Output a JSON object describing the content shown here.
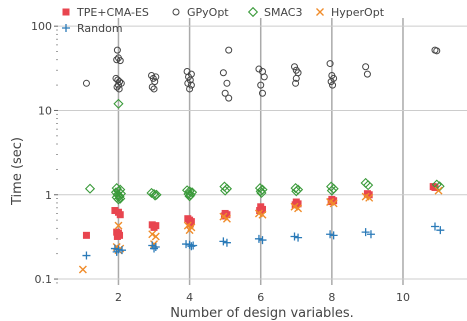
{
  "chart_data": {
    "type": "scatter",
    "xlabel": "Number of design variables.",
    "ylabel": "Time (sec)",
    "xlim": [
      0.3,
      11.8
    ],
    "ylim": [
      0.085,
      125
    ],
    "yscale": "log",
    "xticks": [
      2,
      4,
      6,
      8,
      10
    ],
    "xtick_labels": [
      "2",
      "4",
      "6",
      "8",
      "10"
    ],
    "yticks": [
      0.1,
      1,
      10,
      100
    ],
    "ytick_labels": [
      "0.1",
      "1",
      "10",
      "100"
    ],
    "grid": true,
    "legend_position": "top-left",
    "series": [
      {
        "name": "TPE+CMA-ES",
        "marker": "square",
        "color": "#e8454f",
        "points": [
          [
            1.1,
            0.33
          ],
          [
            1.9,
            0.65
          ],
          [
            2.0,
            0.62
          ],
          [
            2.05,
            0.58
          ],
          [
            1.95,
            0.36
          ],
          [
            2.0,
            0.35
          ],
          [
            2.03,
            0.33
          ],
          [
            1.97,
            0.32
          ],
          [
            2.95,
            0.44
          ],
          [
            3.05,
            0.43
          ],
          [
            3.0,
            0.41
          ],
          [
            3.95,
            0.52
          ],
          [
            4.0,
            0.5
          ],
          [
            4.05,
            0.48
          ],
          [
            4.02,
            0.45
          ],
          [
            5.0,
            0.6
          ],
          [
            5.05,
            0.58
          ],
          [
            4.98,
            0.56
          ],
          [
            6.0,
            0.72
          ],
          [
            6.05,
            0.67
          ],
          [
            5.97,
            0.65
          ],
          [
            7.0,
            0.82
          ],
          [
            7.05,
            0.78
          ],
          [
            6.97,
            0.76
          ],
          [
            8.0,
            0.88
          ],
          [
            8.05,
            0.85
          ],
          [
            7.98,
            0.83
          ],
          [
            9.0,
            1.03
          ],
          [
            9.05,
            1.0
          ],
          [
            10.85,
            1.25
          ],
          [
            10.9,
            1.22
          ]
        ]
      },
      {
        "name": "GPyOpt",
        "marker": "circle",
        "color": "#444444",
        "points": [
          [
            1.1,
            21
          ],
          [
            1.97,
            52
          ],
          [
            2.0,
            42
          ],
          [
            1.95,
            40
          ],
          [
            2.05,
            39
          ],
          [
            1.93,
            24
          ],
          [
            1.98,
            23
          ],
          [
            2.03,
            22
          ],
          [
            2.08,
            21
          ],
          [
            2.0,
            20
          ],
          [
            1.96,
            19
          ],
          [
            2.02,
            18
          ],
          [
            2.93,
            26
          ],
          [
            3.05,
            25
          ],
          [
            2.98,
            24
          ],
          [
            3.02,
            22
          ],
          [
            2.95,
            19
          ],
          [
            3.0,
            18
          ],
          [
            3.93,
            29
          ],
          [
            4.05,
            27
          ],
          [
            3.97,
            25
          ],
          [
            4.02,
            23
          ],
          [
            3.95,
            21
          ],
          [
            4.05,
            20
          ],
          [
            4.0,
            18
          ],
          [
            5.1,
            52
          ],
          [
            4.95,
            28
          ],
          [
            5.05,
            21
          ],
          [
            5.0,
            16
          ],
          [
            5.1,
            14
          ],
          [
            5.95,
            31
          ],
          [
            6.05,
            29
          ],
          [
            6.1,
            25
          ],
          [
            6.0,
            20
          ],
          [
            6.05,
            16
          ],
          [
            6.95,
            33
          ],
          [
            7.0,
            30
          ],
          [
            7.05,
            28
          ],
          [
            7.0,
            24
          ],
          [
            6.98,
            21
          ],
          [
            7.95,
            36
          ],
          [
            8.0,
            26
          ],
          [
            8.05,
            24
          ],
          [
            7.98,
            22
          ],
          [
            8.02,
            20
          ],
          [
            8.95,
            33
          ],
          [
            9.0,
            27
          ],
          [
            10.9,
            52
          ],
          [
            10.95,
            51
          ]
        ]
      },
      {
        "name": "SMAC3",
        "marker": "diamond",
        "color": "#3a9a3a",
        "points": [
          [
            1.2,
            1.18
          ],
          [
            2.0,
            12.0
          ],
          [
            1.95,
            1.2
          ],
          [
            2.05,
            1.15
          ],
          [
            2.0,
            1.1
          ],
          [
            1.93,
            1.07
          ],
          [
            2.07,
            1.03
          ],
          [
            1.98,
            1.0
          ],
          [
            2.03,
            0.96
          ],
          [
            1.95,
            0.93
          ],
          [
            2.05,
            0.9
          ],
          [
            2.0,
            0.88
          ],
          [
            2.93,
            1.05
          ],
          [
            3.0,
            1.02
          ],
          [
            3.07,
            1.0
          ],
          [
            3.03,
            0.98
          ],
          [
            3.93,
            1.13
          ],
          [
            4.0,
            1.1
          ],
          [
            4.07,
            1.07
          ],
          [
            3.97,
            1.02
          ],
          [
            4.03,
            1.0
          ],
          [
            4.0,
            0.96
          ],
          [
            4.98,
            1.25
          ],
          [
            5.05,
            1.18
          ],
          [
            5.0,
            1.12
          ],
          [
            5.98,
            1.2
          ],
          [
            6.05,
            1.15
          ],
          [
            6.0,
            1.1
          ],
          [
            6.02,
            1.05
          ],
          [
            6.98,
            1.2
          ],
          [
            7.05,
            1.15
          ],
          [
            7.0,
            1.1
          ],
          [
            7.98,
            1.25
          ],
          [
            8.05,
            1.18
          ],
          [
            8.0,
            1.12
          ],
          [
            8.95,
            1.38
          ],
          [
            9.02,
            1.3
          ],
          [
            10.95,
            1.32
          ],
          [
            11.03,
            1.26
          ]
        ]
      },
      {
        "name": "HyperOpt",
        "marker": "x",
        "color": "#f08c2a",
        "points": [
          [
            1.0,
            0.13
          ],
          [
            2.0,
            0.43
          ],
          [
            1.95,
            0.24
          ],
          [
            2.05,
            0.23
          ],
          [
            2.0,
            0.22
          ],
          [
            2.95,
            0.34
          ],
          [
            3.05,
            0.32
          ],
          [
            3.0,
            0.26
          ],
          [
            3.95,
            0.43
          ],
          [
            4.05,
            0.41
          ],
          [
            4.0,
            0.38
          ],
          [
            4.95,
            0.55
          ],
          [
            5.05,
            0.52
          ],
          [
            5.95,
            0.6
          ],
          [
            6.05,
            0.58
          ],
          [
            6.95,
            0.72
          ],
          [
            7.05,
            0.69
          ],
          [
            7.95,
            0.82
          ],
          [
            8.05,
            0.79
          ],
          [
            8.95,
            0.95
          ],
          [
            9.05,
            0.92
          ],
          [
            11.0,
            1.12
          ]
        ]
      },
      {
        "name": "Random",
        "marker": "plus",
        "color": "#2a7ab8",
        "points": [
          [
            1.1,
            0.19
          ],
          [
            1.9,
            0.23
          ],
          [
            2.0,
            0.225
          ],
          [
            2.1,
            0.22
          ],
          [
            1.95,
            0.21
          ],
          [
            2.95,
            0.25
          ],
          [
            3.05,
            0.24
          ],
          [
            3.0,
            0.23
          ],
          [
            3.9,
            0.26
          ],
          [
            4.0,
            0.255
          ],
          [
            4.1,
            0.25
          ],
          [
            4.05,
            0.245
          ],
          [
            4.95,
            0.28
          ],
          [
            5.05,
            0.27
          ],
          [
            5.95,
            0.3
          ],
          [
            6.05,
            0.29
          ],
          [
            6.95,
            0.32
          ],
          [
            7.05,
            0.31
          ],
          [
            7.95,
            0.34
          ],
          [
            8.05,
            0.33
          ],
          [
            8.95,
            0.36
          ],
          [
            9.1,
            0.34
          ],
          [
            10.9,
            0.42
          ],
          [
            11.05,
            0.38
          ]
        ]
      }
    ]
  }
}
